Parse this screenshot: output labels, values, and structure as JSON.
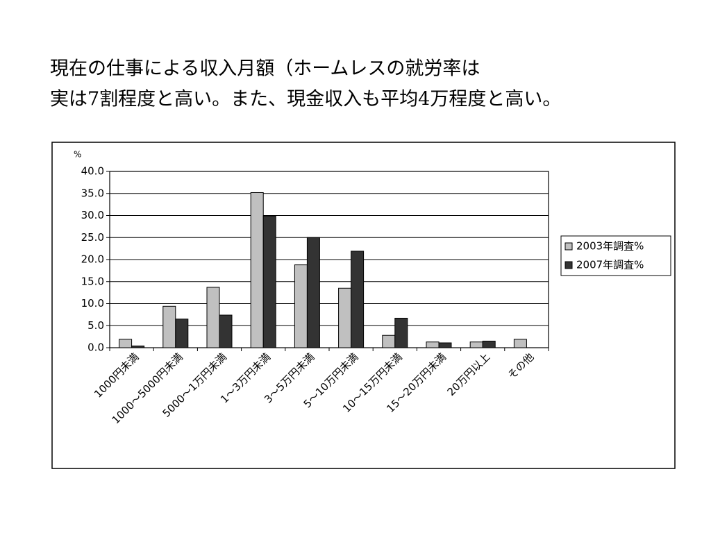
{
  "chart_data": {
    "type": "bar",
    "title": [
      "現在の仕事による収入月額（ホームレスの就労率は",
      "実は7割程度と高い。また、現金収入も平均4万程度と高い。"
    ],
    "y_label": "%",
    "categories": [
      "1000円未満",
      "1000～5000円未満",
      "5000～1万円未満",
      "1～3万円未満",
      "3～5万円未満",
      "5～10万円未満",
      "10～15万円未満",
      "15～20万円未満",
      "20万円以上",
      "その他"
    ],
    "series": [
      {
        "name": "2003年調査%",
        "color": "#c0c0c0",
        "values": [
          1.9,
          9.4,
          13.7,
          35.2,
          18.8,
          13.5,
          2.8,
          1.3,
          1.3,
          1.9
        ]
      },
      {
        "name": "2007年調査%",
        "color": "#333333",
        "values": [
          0.4,
          6.5,
          7.4,
          29.9,
          25.0,
          21.9,
          6.7,
          1.1,
          1.5,
          null
        ]
      }
    ],
    "ylim": [
      0,
      40
    ],
    "yticks": [
      {
        "value": 0,
        "label": "0.0"
      },
      {
        "value": 5,
        "label": "5.0"
      },
      {
        "value": 10,
        "label": "10.0"
      },
      {
        "value": 15,
        "label": "15.0"
      },
      {
        "value": 20,
        "label": "20.0"
      },
      {
        "value": 25,
        "label": "25.0"
      },
      {
        "value": 30,
        "label": "30.0"
      },
      {
        "value": 35,
        "label": "35.0"
      },
      {
        "value": 40,
        "label": "40.0"
      }
    ],
    "grid": true,
    "legend": "right"
  }
}
